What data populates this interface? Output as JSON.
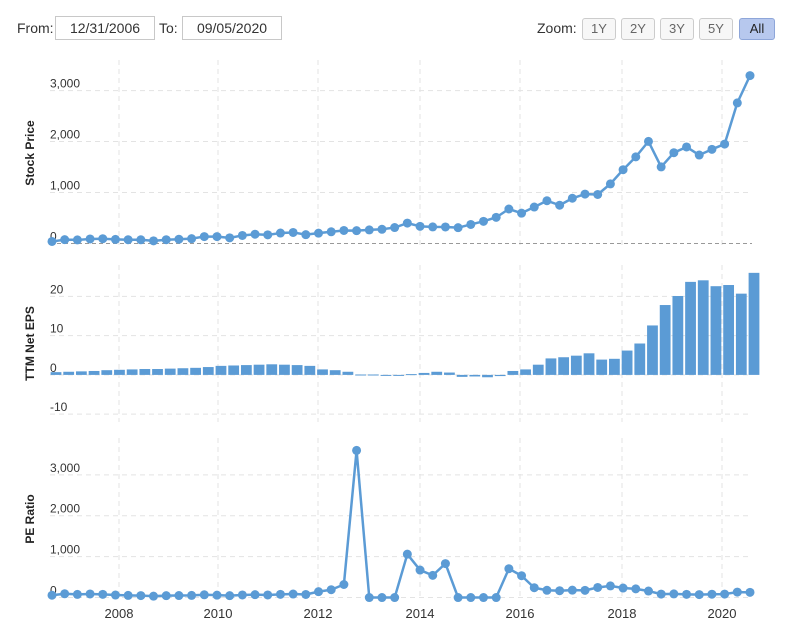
{
  "controls": {
    "from_label": "From:",
    "from_value": "12/31/2006",
    "to_label": "To:",
    "to_value": "09/05/2020",
    "zoom_label": "Zoom:",
    "zoom_buttons": [
      "1Y",
      "2Y",
      "3Y",
      "5Y",
      "All"
    ],
    "zoom_active": "All"
  },
  "colors": {
    "series": "#5b9bd5",
    "grid": "#e3e3e3"
  },
  "chart_data": [
    {
      "type": "line",
      "title": "",
      "ylabel": "Stock Price",
      "ylim": [
        -50,
        3600
      ],
      "yticks": [
        "0",
        "1,000",
        "2,000",
        "3,000"
      ],
      "x": [
        "2006-12-31",
        "2007-03-31",
        "2007-06-30",
        "2007-09-30",
        "2007-12-31",
        "2008-03-31",
        "2008-06-30",
        "2008-09-30",
        "2008-12-31",
        "2009-03-31",
        "2009-06-30",
        "2009-09-30",
        "2009-12-31",
        "2010-03-31",
        "2010-06-30",
        "2010-09-30",
        "2010-12-31",
        "2011-03-31",
        "2011-06-30",
        "2011-09-30",
        "2011-12-31",
        "2012-03-31",
        "2012-06-30",
        "2012-09-30",
        "2012-12-31",
        "2013-03-31",
        "2013-06-30",
        "2013-09-30",
        "2013-12-31",
        "2014-03-31",
        "2014-06-30",
        "2014-09-30",
        "2014-12-31",
        "2015-03-31",
        "2015-06-30",
        "2015-09-30",
        "2015-12-31",
        "2016-03-31",
        "2016-06-30",
        "2016-09-30",
        "2016-12-31",
        "2017-03-31",
        "2017-06-30",
        "2017-09-30",
        "2017-12-31",
        "2018-03-31",
        "2018-06-30",
        "2018-09-30",
        "2018-12-31",
        "2019-03-31",
        "2019-06-30",
        "2019-09-30",
        "2019-12-31",
        "2020-03-31",
        "2020-06-30",
        "2020-09-05"
      ],
      "values": [
        39,
        74,
        69,
        88,
        93,
        79,
        73,
        72,
        51,
        73,
        83,
        94,
        135,
        135,
        110,
        157,
        181,
        169,
        204,
        216,
        173,
        202,
        229,
        255,
        251,
        266,
        278,
        312,
        399,
        336,
        325,
        323,
        310,
        373,
        434,
        512,
        676,
        594,
        715,
        838,
        750,
        887,
        969,
        961,
        1169,
        1447,
        1699,
        2003,
        1502,
        1781,
        1893,
        1735,
        1847,
        1950,
        2758,
        3294
      ]
    },
    {
      "type": "bar",
      "title": "",
      "ylabel": "TTM Net EPS",
      "ylim": [
        -12,
        28
      ],
      "yticks": [
        "-10",
        "0",
        "10",
        "20"
      ],
      "values": [
        0.7,
        0.8,
        0.9,
        1.0,
        1.2,
        1.3,
        1.4,
        1.5,
        1.5,
        1.6,
        1.7,
        1.8,
        2.0,
        2.3,
        2.4,
        2.5,
        2.6,
        2.7,
        2.6,
        2.5,
        2.3,
        1.4,
        1.2,
        0.8,
        0.1,
        0.1,
        -0.1,
        -0.2,
        0.2,
        0.5,
        0.8,
        0.6,
        -0.5,
        -0.4,
        -0.6,
        -0.3,
        1.0,
        1.4,
        2.6,
        4.2,
        4.5,
        4.9,
        5.5,
        3.9,
        4.1,
        6.2,
        8.0,
        12.6,
        17.8,
        20.1,
        23.7,
        24.1,
        22.6,
        22.9,
        20.7,
        26.0
      ]
    },
    {
      "type": "line",
      "title": "",
      "ylabel": "PE Ratio",
      "ylim": [
        -60,
        3900
      ],
      "yticks": [
        "0",
        "1,000",
        "2,000",
        "3,000"
      ],
      "xticks": [
        "2008",
        "2010",
        "2012",
        "2014",
        "2016",
        "2018",
        "2020"
      ],
      "values": [
        56,
        92,
        77,
        88,
        78,
        61,
        52,
        48,
        34,
        46,
        49,
        52,
        68,
        59,
        46,
        63,
        70,
        63,
        78,
        86,
        75,
        144,
        191,
        319,
        3597,
        0,
        0,
        0,
        1060,
        672,
        542,
        830,
        0,
        0,
        0,
        0,
        705,
        533,
        240,
        178,
        167,
        181,
        176,
        246,
        285,
        233,
        212,
        159,
        84,
        89,
        78,
        72,
        82,
        85,
        133,
        127
      ]
    }
  ]
}
